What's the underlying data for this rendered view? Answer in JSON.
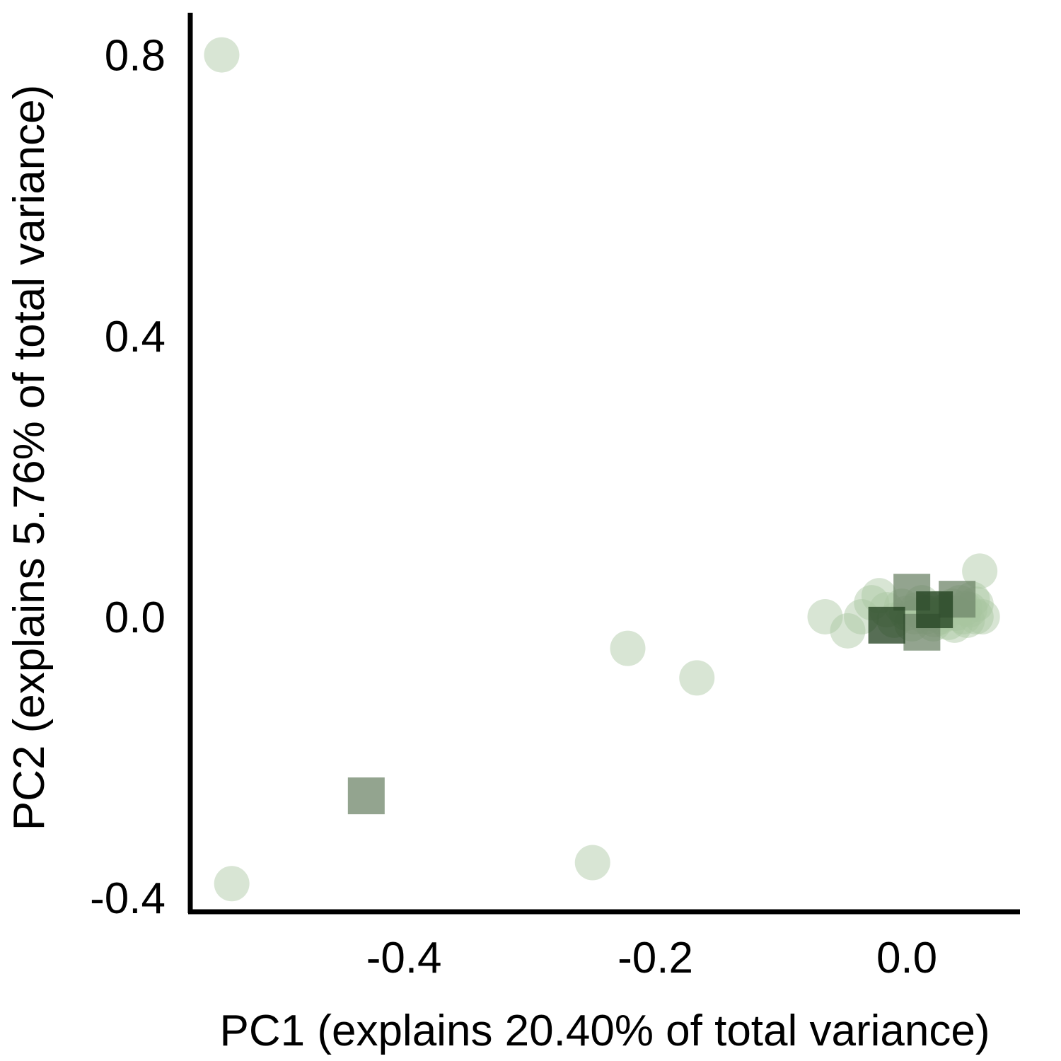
{
  "chart_data": {
    "type": "scatter",
    "title": "",
    "xlabel": "PC1 (explains 20.40% of total variance)",
    "ylabel": "PC2 (explains 5.76% of total variance)",
    "xlim": [
      -0.57,
      0.09
    ],
    "ylim": [
      -0.42,
      0.86
    ],
    "x_ticks": [
      -0.4,
      -0.2,
      0.0
    ],
    "x_tick_labels": [
      "-0.4",
      "-0.2",
      "0.0"
    ],
    "y_ticks": [
      -0.4,
      0.0,
      0.4,
      0.8
    ],
    "y_tick_labels": [
      "-0.4",
      "0.0",
      "0.4",
      "0.8"
    ],
    "grid": false,
    "legend": "none",
    "colors": {
      "light_circle": "#a8c6a0",
      "grey_square": "#6f856a",
      "dark_square": "#1f3d1c"
    },
    "series": [
      {
        "marker": "circle",
        "color": "#a8c6a0",
        "opacity": 0.45,
        "x": [
          -0.545,
          -0.537,
          -0.222,
          -0.25,
          -0.167,
          -0.065,
          -0.047,
          -0.036,
          -0.028,
          -0.022,
          -0.016,
          -0.01,
          -0.004,
          0.0,
          0.004,
          0.008,
          0.012,
          0.015,
          0.018,
          0.021,
          0.024,
          0.027,
          0.03,
          0.033,
          0.036,
          0.039,
          0.042,
          0.045,
          0.048,
          0.05,
          0.052,
          0.055,
          0.058,
          0.06,
          0.055,
          0.046,
          0.038,
          0.03,
          0.022,
          0.014,
          0.006
        ],
        "y": [
          0.8,
          -0.38,
          -0.045,
          -0.35,
          -0.087,
          0.0,
          -0.02,
          0.0,
          0.02,
          0.03,
          0.01,
          -0.005,
          0.015,
          0.005,
          -0.01,
          0.01,
          0.02,
          0.0,
          0.005,
          -0.01,
          0.012,
          0.0,
          0.008,
          -0.008,
          0.015,
          0.005,
          0.02,
          0.0,
          -0.005,
          0.01,
          0.025,
          0.0,
          0.065,
          0.0,
          0.018,
          0.012,
          -0.012,
          0.004,
          -0.004,
          0.006,
          0.0
        ]
      },
      {
        "marker": "square",
        "color": "#6f856a",
        "opacity": 0.75,
        "x": [
          -0.43,
          0.004,
          0.04,
          0.012
        ],
        "y": [
          -0.255,
          0.035,
          0.025,
          -0.022
        ]
      },
      {
        "marker": "square",
        "color": "#1f3d1c",
        "opacity": 0.75,
        "x": [
          -0.016,
          0.022
        ],
        "y": [
          -0.012,
          0.01
        ]
      }
    ]
  }
}
